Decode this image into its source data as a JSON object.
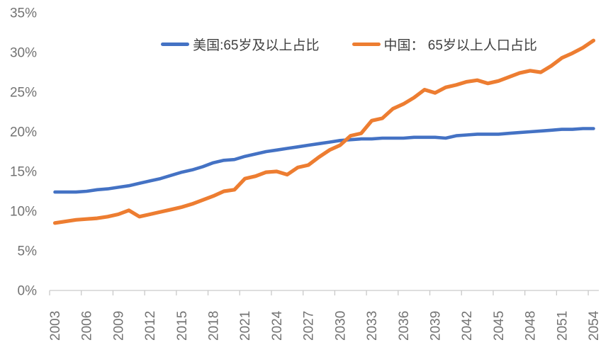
{
  "chart_data": {
    "type": "line",
    "title": "",
    "xlabel": "",
    "ylabel": "",
    "grid": false,
    "legend_position": "top",
    "ylim": [
      0,
      35
    ],
    "ytick_labels": [
      "0%",
      "5%",
      "10%",
      "15%",
      "20%",
      "25%",
      "30%",
      "35%"
    ],
    "xtick_interval": 3,
    "xtick_labels": [
      "2003",
      "2006",
      "2009",
      "2012",
      "2015",
      "2018",
      "2021",
      "2024",
      "2027",
      "2030",
      "2033",
      "2036",
      "2039",
      "2042",
      "2045",
      "2048",
      "2051",
      "2054"
    ],
    "x": [
      2003,
      2004,
      2005,
      2006,
      2007,
      2008,
      2009,
      2010,
      2011,
      2012,
      2013,
      2014,
      2015,
      2016,
      2017,
      2018,
      2019,
      2020,
      2021,
      2022,
      2023,
      2024,
      2025,
      2026,
      2027,
      2028,
      2029,
      2030,
      2031,
      2032,
      2033,
      2034,
      2035,
      2036,
      2037,
      2038,
      2039,
      2040,
      2041,
      2042,
      2043,
      2044,
      2045,
      2046,
      2047,
      2048,
      2049,
      2050,
      2051,
      2052,
      2053,
      2054
    ],
    "series": [
      {
        "name": "美国:65岁及以上占比",
        "color": "#4472C4",
        "stroke_width": 4.6,
        "values": [
          12.4,
          12.4,
          12.4,
          12.5,
          12.7,
          12.8,
          13.0,
          13.2,
          13.5,
          13.8,
          14.1,
          14.5,
          14.9,
          15.2,
          15.6,
          16.1,
          16.4,
          16.5,
          16.9,
          17.2,
          17.5,
          17.7,
          17.9,
          18.1,
          18.3,
          18.5,
          18.7,
          18.9,
          19.0,
          19.1,
          19.1,
          19.2,
          19.2,
          19.2,
          19.3,
          19.3,
          19.3,
          19.2,
          19.5,
          19.6,
          19.7,
          19.7,
          19.7,
          19.8,
          19.9,
          20.0,
          20.1,
          20.2,
          20.3,
          20.3,
          20.4,
          20.4
        ]
      },
      {
        "name": "中国： 65岁以上人口占比",
        "color": "#ED7D31",
        "stroke_width": 5.2,
        "values": [
          8.5,
          8.7,
          8.9,
          9.0,
          9.1,
          9.3,
          9.6,
          10.1,
          9.3,
          9.6,
          9.9,
          10.2,
          10.5,
          10.9,
          11.4,
          11.9,
          12.5,
          12.7,
          14.1,
          14.4,
          14.9,
          15.0,
          14.6,
          15.5,
          15.8,
          16.8,
          17.7,
          18.3,
          19.5,
          19.8,
          21.4,
          21.7,
          22.9,
          23.5,
          24.3,
          25.3,
          24.9,
          25.6,
          25.9,
          26.3,
          26.5,
          26.1,
          26.4,
          26.9,
          27.4,
          27.7,
          27.5,
          28.3,
          29.3,
          29.9,
          30.6,
          31.5
        ]
      }
    ]
  },
  "colors": {
    "background": "#FFFFFF",
    "axis_line": "#C9C9C9",
    "tick_label": "#737373",
    "legend_text": "#404040"
  }
}
